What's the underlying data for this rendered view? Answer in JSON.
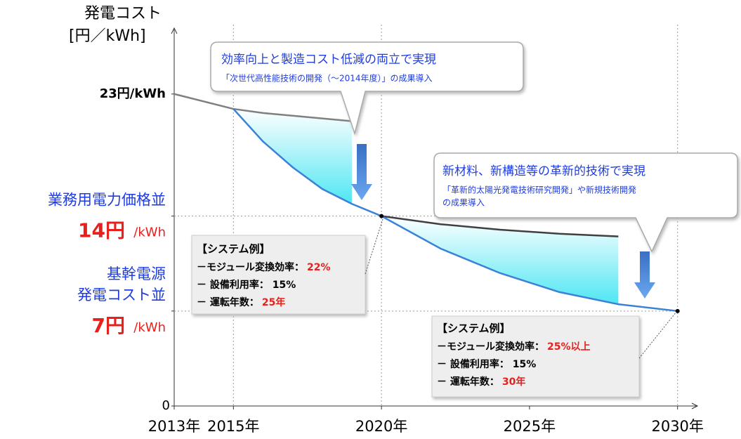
{
  "chart_data": {
    "type": "line",
    "ylabel": "発電コスト",
    "ylabel_unit": "[円／kWh]",
    "xlim": [
      2013,
      2030.6
    ],
    "ylim": [
      0,
      27.6
    ],
    "xticks": [
      {
        "value": 2013,
        "label": "2013年"
      },
      {
        "value": 2015,
        "label": "2015年"
      },
      {
        "value": 2020,
        "label": "2020年"
      },
      {
        "value": 2025,
        "label": "2025年"
      },
      {
        "value": 2030,
        "label": "2030年"
      }
    ],
    "yticks": [
      0,
      {
        "value": 23,
        "label": "23円/kWh"
      },
      {
        "value": 14,
        "label": "14円",
        "unit": "/kWh",
        "captions": [
          "業務用電力価格並"
        ]
      },
      {
        "value": 7,
        "label": "7円",
        "unit": "/kWh",
        "captions": [
          "基幹電源",
          "発電コスト並"
        ]
      }
    ],
    "grid_x": [
      2015,
      2020,
      2030
    ],
    "grid_y": [
      14,
      7
    ],
    "x": [
      2013,
      2015,
      2016,
      2017,
      2018,
      2019,
      2020,
      2022,
      2024,
      2026,
      2028,
      2030
    ],
    "series": [
      {
        "color": "#808080",
        "values": [
          23,
          21.9,
          21.6,
          21.4,
          21.2,
          21.0,
          null,
          null,
          null,
          null,
          null,
          null
        ]
      },
      {
        "color": "#404040",
        "values": [
          null,
          null,
          null,
          null,
          null,
          null,
          14,
          13.4,
          13.0,
          12.7,
          12.5,
          null
        ]
      },
      {
        "color": "#3b82d6",
        "values": [
          null,
          21.9,
          19.5,
          17.6,
          16.0,
          14.9,
          14,
          11.6,
          9.8,
          8.4,
          7.5,
          7
        ]
      }
    ],
    "callouts": [
      {
        "title": "効率向上と製造コスト低減の両立で実現",
        "lines": [
          "「次世代高性能技術の開発（～2014年度）」の成果導入"
        ]
      },
      {
        "title": "新材料、新構造等の革新的技術で実現",
        "lines": [
          "「革新的太陽光発電技術研究開発」や新規技術開発",
          "の成果導入"
        ]
      }
    ],
    "system_boxes": [
      {
        "title": "【システム例】",
        "rows": [
          {
            "label": "－モジュール変換効率：",
            "value": "22%"
          },
          {
            "label": "－ 設備利用率： 15%"
          },
          {
            "label": "－ 運転年数：",
            "value": "25年"
          }
        ]
      },
      {
        "title": "【システム例】",
        "rows": [
          {
            "label": "－モジュール変換効率：",
            "value": "25%以上"
          },
          {
            "label": "－ 設備利用率： 15%"
          },
          {
            "label": "－ 運転年数：",
            "value": "30年"
          }
        ]
      }
    ]
  }
}
